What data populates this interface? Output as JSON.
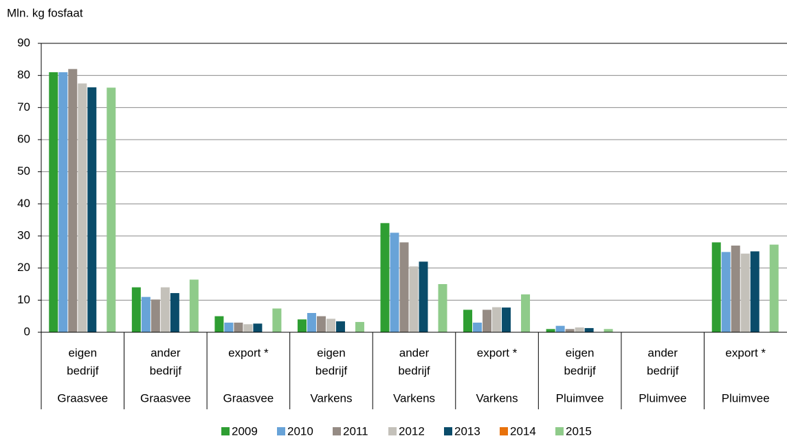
{
  "chart_data": {
    "type": "bar",
    "y_axis_title": "Mln. kg fosfaat",
    "categories": [
      {
        "lines": [
          "eigen",
          "bedrijf"
        ],
        "group": "Graasvee"
      },
      {
        "lines": [
          "ander",
          "bedrijf"
        ],
        "group": "Graasvee"
      },
      {
        "lines": [
          "export *"
        ],
        "group": "Graasvee"
      },
      {
        "lines": [
          "eigen",
          "bedrijf"
        ],
        "group": "Varkens"
      },
      {
        "lines": [
          "ander",
          "bedrijf"
        ],
        "group": "Varkens"
      },
      {
        "lines": [
          "export *"
        ],
        "group": "Varkens"
      },
      {
        "lines": [
          "eigen",
          "bedrijf"
        ],
        "group": "Pluimvee"
      },
      {
        "lines": [
          "ander",
          "bedrijf"
        ],
        "group": "Pluimvee"
      },
      {
        "lines": [
          "export *"
        ],
        "group": "Pluimvee"
      }
    ],
    "series": [
      {
        "name": "2009",
        "color": "#2e9e32",
        "values": [
          81,
          14,
          5,
          4,
          34,
          7,
          1,
          null,
          28
        ]
      },
      {
        "name": "2010",
        "color": "#68a3d8",
        "values": [
          81,
          11,
          3,
          6,
          31,
          3,
          2,
          null,
          25
        ]
      },
      {
        "name": "2011",
        "color": "#958b84",
        "values": [
          82,
          10.2,
          3,
          5,
          28,
          7,
          1,
          null,
          27
        ]
      },
      {
        "name": "2012",
        "color": "#c4c1ba",
        "values": [
          77.5,
          14,
          2.5,
          4.2,
          20.5,
          7.8,
          1.5,
          null,
          24.5
        ]
      },
      {
        "name": "2013",
        "color": "#0a4c6a",
        "values": [
          76.3,
          12.2,
          2.7,
          3.4,
          22,
          7.7,
          1.3,
          null,
          25.2
        ]
      },
      {
        "name": "2014",
        "color": "#e8720c",
        "values": [
          null,
          null,
          null,
          null,
          null,
          null,
          null,
          null,
          null
        ]
      },
      {
        "name": "2015",
        "color": "#8fcb8a",
        "values": [
          76.2,
          16.4,
          7.4,
          3.2,
          15,
          11.8,
          1,
          null,
          27.3
        ]
      }
    ],
    "ylim": [
      0,
      90
    ],
    "yticks": [
      0,
      10,
      20,
      30,
      40,
      50,
      60,
      70,
      80,
      90
    ],
    "grid": true
  }
}
